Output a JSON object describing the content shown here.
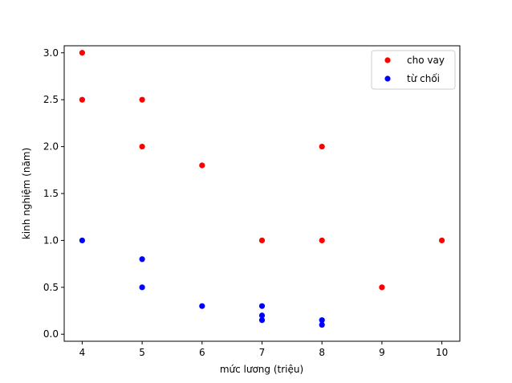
{
  "chart_data": {
    "type": "scatter",
    "xlabel": "mức lương (triệu)",
    "ylabel": "kinh nghiệm (năm)",
    "xlim": [
      3.7,
      10.3
    ],
    "ylim": [
      -0.075,
      3.075
    ],
    "xticks": [
      "4",
      "5",
      "6",
      "7",
      "8",
      "9",
      "10"
    ],
    "yticks": [
      "0.0",
      "0.5",
      "1.0",
      "1.5",
      "2.0",
      "2.5",
      "3.0"
    ],
    "grid": false,
    "legend_position": "top-right",
    "series": [
      {
        "name": "cho vay",
        "color": "#ff0000",
        "points": [
          [
            4,
            3.0
          ],
          [
            4,
            2.5
          ],
          [
            5,
            2.5
          ],
          [
            5,
            2.0
          ],
          [
            6,
            1.8
          ],
          [
            7,
            1.0
          ],
          [
            8,
            2.0
          ],
          [
            8,
            1.0
          ],
          [
            9,
            0.5
          ],
          [
            10,
            1.0
          ]
        ]
      },
      {
        "name": "từ chối",
        "color": "#0000ff",
        "points": [
          [
            4,
            1.0
          ],
          [
            5,
            0.8
          ],
          [
            5,
            0.5
          ],
          [
            6,
            0.3
          ],
          [
            7,
            0.3
          ],
          [
            7,
            0.2
          ],
          [
            7,
            0.15
          ],
          [
            8,
            0.15
          ],
          [
            8,
            0.1
          ]
        ]
      }
    ]
  }
}
